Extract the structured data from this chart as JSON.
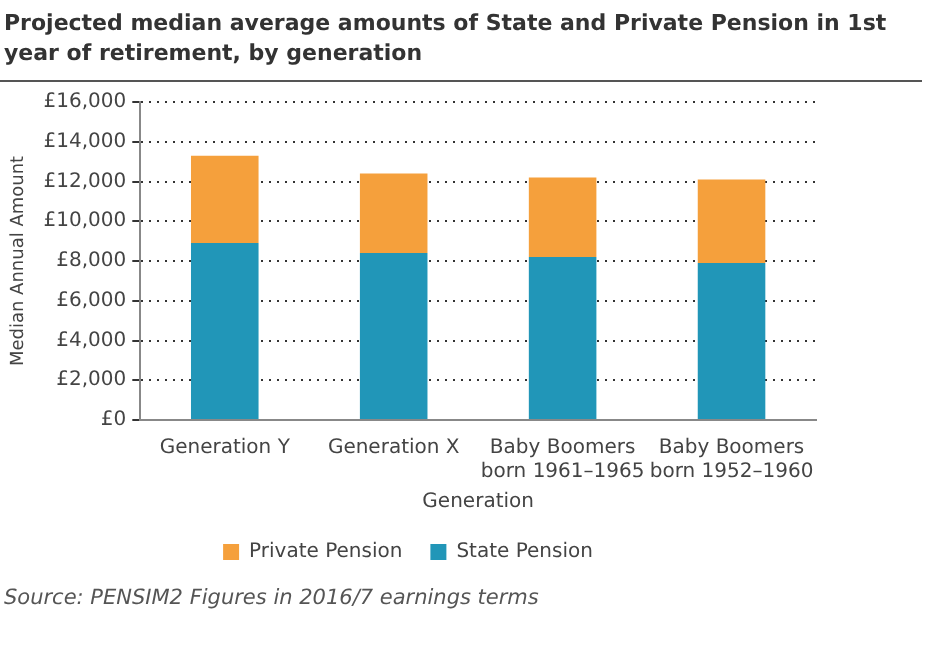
{
  "chart_data": {
    "type": "bar",
    "stacked": true,
    "title": "Projected median average amounts of State and Private Pension in 1st year of retirement, by generation",
    "xlabel": "Generation",
    "ylabel": "Median Annual Amount",
    "categories": [
      "Generation Y",
      "Generation X",
      "Baby Boomers born 1961–1965",
      "Baby Boomers born 1952–1960"
    ],
    "series": [
      {
        "name": "State Pension",
        "color": "#2196b8",
        "values": [
          8900,
          8400,
          8200,
          7900
        ]
      },
      {
        "name": "Private Pension",
        "color": "#f5a03c",
        "values": [
          4400,
          4000,
          4000,
          4200
        ]
      }
    ],
    "ylim": [
      0,
      16000
    ],
    "yticks": [
      {
        "value": 0,
        "label": "£0"
      },
      {
        "value": 2000,
        "label": "£2,000"
      },
      {
        "value": 4000,
        "label": "£4,000"
      },
      {
        "value": 6000,
        "label": "£6,000"
      },
      {
        "value": 8000,
        "label": "£8,000"
      },
      {
        "value": 10000,
        "label": "£10,000"
      },
      {
        "value": 12000,
        "label": "£12,000"
      },
      {
        "value": 14000,
        "label": "£14,000"
      },
      {
        "value": 16000,
        "label": "£16,000"
      }
    ],
    "grid": "y",
    "legend": "bottom",
    "annotations": [
      "Source: PENSIM2 Figures in 2016/7 earnings terms"
    ]
  }
}
